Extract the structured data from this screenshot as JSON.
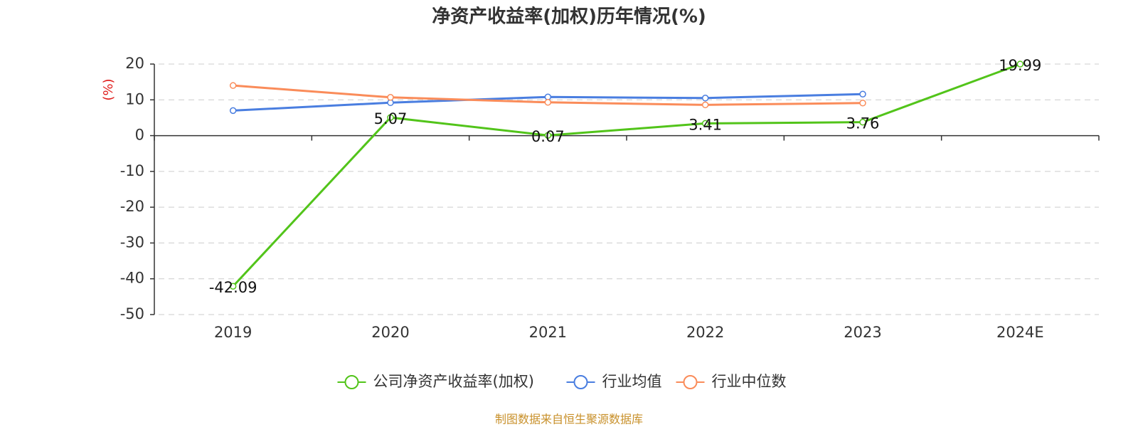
{
  "chart_data": {
    "type": "line",
    "title": "净资产收益率(加权)历年情况(%)",
    "y_label": "(%)",
    "y_label_color": "#e0201e",
    "categories": [
      "2019",
      "2020",
      "2021",
      "2022",
      "2023",
      "2024E"
    ],
    "series": [
      {
        "name": "公司净资产收益率(加权)",
        "color": "#52c41a",
        "values": [
          -42.09,
          5.07,
          0.07,
          3.41,
          3.76,
          19.99
        ],
        "value_labels": [
          "-42.09",
          "5.07",
          "0.07",
          "3.41",
          "3.76",
          "19.99"
        ]
      },
      {
        "name": "行业均值",
        "color": "#4a7ee0",
        "values": [
          7.0,
          9.2,
          10.8,
          10.5,
          11.6,
          null
        ]
      },
      {
        "name": "行业中位数",
        "color": "#fa8c5a",
        "values": [
          14.0,
          10.7,
          9.3,
          8.6,
          9.1,
          null
        ]
      }
    ],
    "ylim": [
      -50,
      20
    ],
    "yticks": [
      -50,
      -40,
      -30,
      -20,
      -10,
      0,
      10,
      20
    ],
    "grid": true,
    "source": "制图数据来自恒生聚源数据库",
    "source_color": "#c8902a"
  }
}
